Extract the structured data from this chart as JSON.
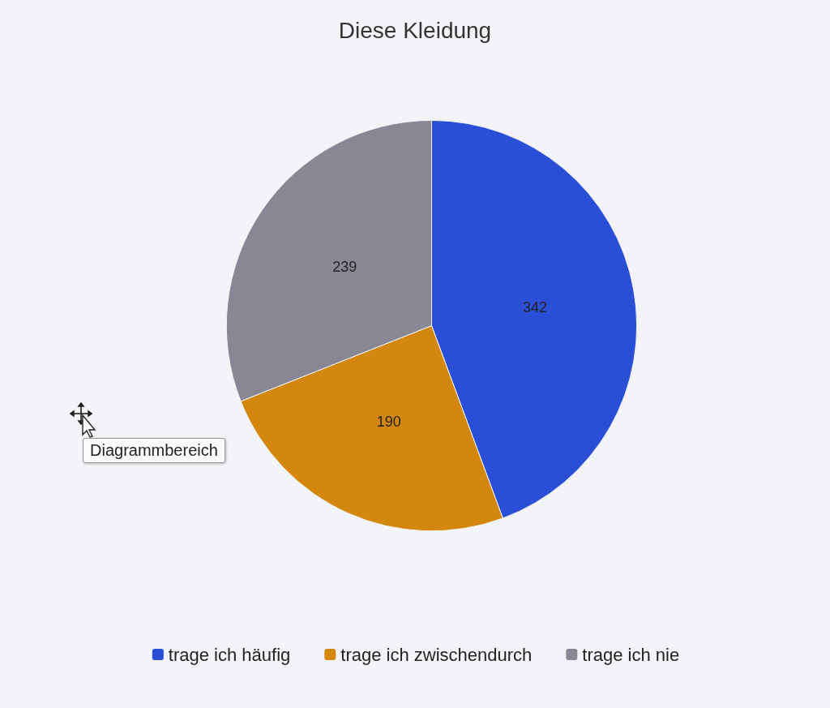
{
  "chart_data": {
    "type": "pie",
    "title": "Diese Kleidung",
    "categories": [
      "trage ich häufig",
      "trage ich zwischendurch",
      "trage ich nie"
    ],
    "values": [
      342,
      190,
      239
    ],
    "colors": [
      "#2a4fd6",
      "#d4870f",
      "#8a8794"
    ],
    "data_labels": true,
    "legend": "bottom",
    "annotations": [
      "Diagrammbereich"
    ]
  }
}
